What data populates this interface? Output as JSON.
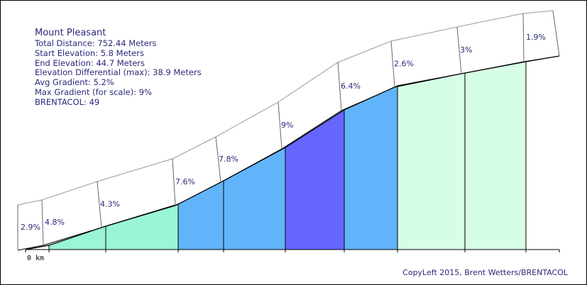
{
  "info": {
    "title": "Mount Pleasant",
    "total_distance": "Total Distance: 752.44 Meters",
    "start_elevation": "Start Elevation: 5.8 Meters",
    "end_elevation": "End Elevation: 44.7 Meters",
    "elevation_differential": "Elevation Differential (max): 38.9 Meters",
    "avg_gradient": "Avg Gradient: 5.2%",
    "max_gradient": "Max Gradient (for scale): 9%",
    "brentacol": "BRENTACOL: 49"
  },
  "copyright": "CopyLeft 2015, Brent Wetters/BRENTACOL",
  "colors": {
    "low": "#99f5d6",
    "mid": "#62b4fa",
    "high": "#6666ff",
    "flat": "#d6fde6"
  },
  "chart_data": {
    "type": "area",
    "xlabel": "",
    "ylabel": "",
    "x_tick_label": "0 km",
    "segments": [
      {
        "label": "2.9%",
        "gradient": 2.9,
        "color": "#ffffff"
      },
      {
        "label": "4.8%",
        "gradient": 4.8,
        "color": "#99f5d6"
      },
      {
        "label": "4.3%",
        "gradient": 4.3,
        "color": "#99f5d6"
      },
      {
        "label": "7.6%",
        "gradient": 7.6,
        "color": "#62b4fa"
      },
      {
        "label": "7.8%",
        "gradient": 7.8,
        "color": "#62b4fa"
      },
      {
        "label": "9%",
        "gradient": 9,
        "color": "#6666ff"
      },
      {
        "label": "6.4%",
        "gradient": 6.4,
        "color": "#62b4fa"
      },
      {
        "label": "2.6%",
        "gradient": 2.6,
        "color": "#d6fde6"
      },
      {
        "label": "3%",
        "gradient": 3,
        "color": "#d6fde6"
      },
      {
        "label": "1.9%",
        "gradient": 1.9,
        "color": "#ffffff"
      }
    ]
  }
}
